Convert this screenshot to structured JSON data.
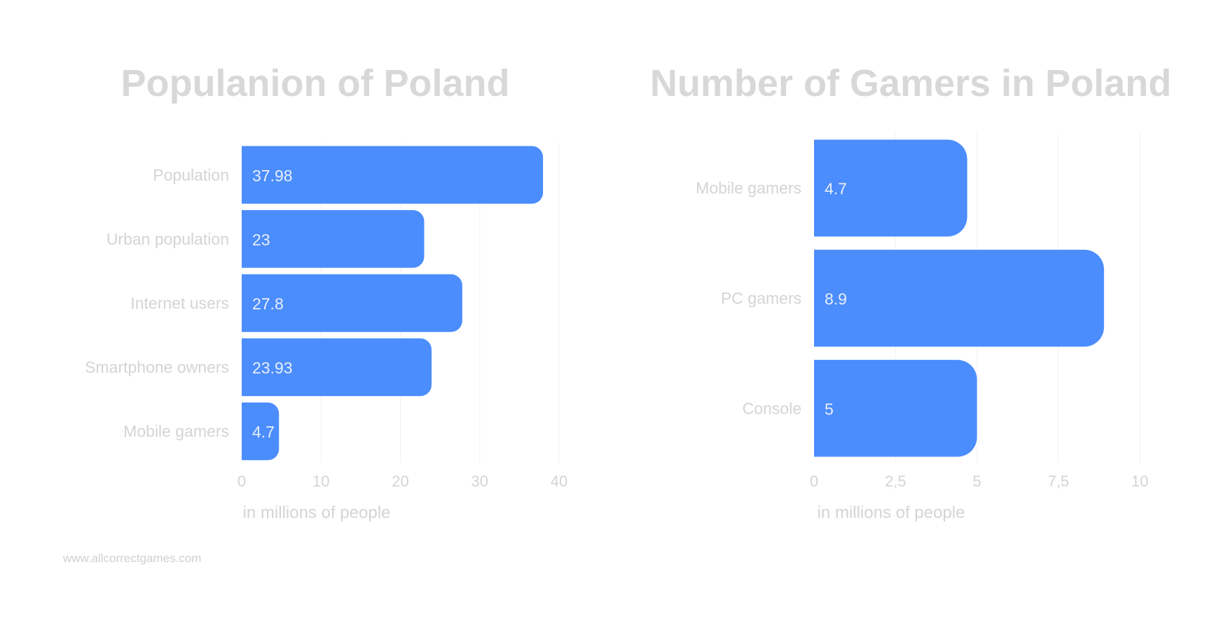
{
  "footer": "www.allcorrectgames.com",
  "colors": {
    "bar": "#4b8dfd",
    "label": "#d4d4d4",
    "title": "#d8d8d8",
    "grid": "#f2f2f2",
    "bar_text": "#e8eefb"
  },
  "chart_data": [
    {
      "type": "bar",
      "orientation": "horizontal",
      "title": "Populanion of Poland",
      "categories": [
        "Population",
        "Urban population",
        "Internet users",
        "Smartphone owners",
        "Mobile gamers"
      ],
      "values": [
        37.98,
        23,
        27.8,
        23.93,
        4.7
      ],
      "value_labels": [
        "37.98",
        "23",
        "27.8",
        "23.93",
        "4.7"
      ],
      "xlabel": "in millions of people",
      "ylabel": "",
      "xlim": [
        0,
        40
      ],
      "xticks": [
        0,
        10,
        20,
        30,
        40
      ],
      "xtick_labels": [
        "0",
        "10",
        "20",
        "30",
        "40"
      ],
      "grid": true
    },
    {
      "type": "bar",
      "orientation": "horizontal",
      "title": "Number of Gamers in Poland",
      "categories": [
        "Mobile gamers",
        "PC gamers",
        "Console"
      ],
      "values": [
        4.7,
        8.9,
        5
      ],
      "value_labels": [
        "4.7",
        "8.9",
        "5"
      ],
      "xlabel": "in millions of people",
      "ylabel": "",
      "xlim": [
        0,
        10
      ],
      "xticks": [
        0,
        2.5,
        5,
        7.5,
        10
      ],
      "xtick_labels": [
        "0",
        "2,5",
        "5",
        "7,5",
        "10"
      ],
      "grid": true
    }
  ]
}
